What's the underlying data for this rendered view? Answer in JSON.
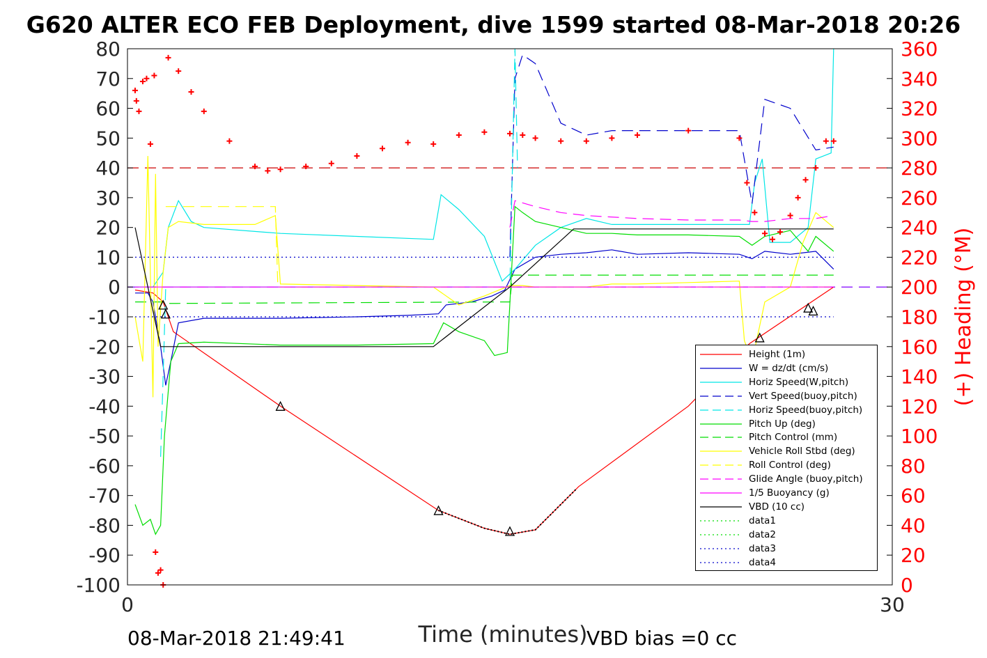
{
  "title": "G620 ALTER ECO FEB Deployment, dive 1599 started 08-Mar-2018 20:26",
  "footer": {
    "timestamp": "08-Mar-2018 21:49:41",
    "vbd_bias": "VBD bias =0 cc"
  },
  "chart_data": {
    "type": "line",
    "title": "G620 ALTER ECO FEB Deployment, dive 1599 started 08-Mar-2018 20:26",
    "xlabel": "Time (minutes)",
    "ylabel": "",
    "y2label": "(+) Heading (°M)",
    "xlim": [
      0,
      30
    ],
    "ylim": [
      -100,
      80
    ],
    "y2lim": [
      0,
      360
    ],
    "xticks": [
      0,
      30
    ],
    "yticks": [
      80,
      70,
      60,
      50,
      40,
      30,
      20,
      10,
      0,
      -10,
      -20,
      -30,
      -40,
      -50,
      -60,
      -70,
      -80,
      -90,
      -100
    ],
    "y2ticks": [
      360,
      340,
      320,
      300,
      280,
      260,
      240,
      220,
      200,
      180,
      160,
      140,
      120,
      100,
      80,
      60,
      40,
      20,
      0
    ],
    "grid": false,
    "legend_position": "bottom-right",
    "colors": {
      "red": "#ff0000",
      "blue": "#0000cc",
      "cyan": "#00e6e6",
      "green": "#00dd00",
      "yellow": "#ffff00",
      "magenta": "#ff00ff",
      "black": "#000000",
      "dark_red": "#cc0000",
      "purple": "#8000ff"
    },
    "series": [
      {
        "name": "Height (1m)",
        "color": "#ff0000",
        "style": "solid",
        "x": [
          0.3,
          1.0,
          1.4,
          1.8,
          6.0,
          12.2,
          14.0,
          15.0,
          16.0,
          17.7,
          22.0,
          24.4,
          27.7
        ],
        "y": [
          -1,
          -2,
          -5,
          -15,
          -40,
          -75,
          -81,
          -83,
          -81.5,
          -67,
          -40,
          -19,
          0
        ]
      },
      {
        "name": "W = dz/dt (cm/s)",
        "color": "#0000cc",
        "style": "solid",
        "x": [
          0.3,
          0.8,
          1.0,
          1.3,
          1.5,
          1.7,
          2.0,
          3.0,
          6.0,
          9.0,
          11.0,
          12.2,
          12.5,
          13.5,
          14.3,
          14.8,
          15.2,
          16.0,
          17.0,
          18.0,
          19.0,
          20.0,
          22.0,
          24.0,
          24.5,
          25.0,
          26.0,
          27.0,
          27.7
        ],
        "y": [
          -2,
          -2,
          -5,
          -20,
          -33,
          -25,
          -12,
          -10.5,
          -10.5,
          -10,
          -9.5,
          -9,
          -6,
          -5,
          -3,
          -1,
          6,
          10,
          11,
          11.5,
          12.5,
          11,
          11.5,
          11,
          9.5,
          12,
          11,
          12,
          6
        ]
      },
      {
        "name": "Horiz Speed(W,pitch)",
        "color": "#00e6e6",
        "style": "solid",
        "x": [
          0.3,
          1.0,
          1.4,
          1.6,
          2.0,
          2.5,
          3.0,
          6.0,
          9.0,
          12.0,
          12.3,
          13.0,
          14.0,
          14.7,
          15.2,
          16.0,
          17.0,
          18.0,
          19.0,
          20.0,
          22.0,
          24.4,
          24.6,
          24.9,
          25.2,
          26.0,
          26.7,
          27.0,
          27.6,
          27.7
        ],
        "y": [
          0,
          0,
          5,
          20,
          29,
          22,
          20,
          18,
          17,
          16,
          31,
          26,
          17,
          2,
          6,
          14,
          20,
          23,
          21,
          21,
          21,
          21,
          35,
          43,
          15,
          15,
          20,
          43,
          45,
          80
        ]
      },
      {
        "name": "Vert Speed(buoy,pitch)",
        "color": "#0000cc",
        "style": "dashed",
        "x": [
          15.0,
          15.2,
          15.5,
          16.0,
          17.0,
          18.0,
          19.0,
          20.0,
          22.0,
          24.0,
          24.5,
          25.0,
          26.0,
          27.0,
          27.7
        ],
        "y": [
          10,
          70,
          78,
          75,
          55,
          51,
          52.5,
          52.5,
          52.5,
          52.5,
          28,
          63,
          60,
          46,
          47
        ]
      },
      {
        "name": "Horiz Speed(buoy,pitch)",
        "color": "#00e6e6",
        "style": "dashed",
        "x": [
          1.3,
          1.4,
          1.5,
          15.0,
          15.2,
          15.3
        ],
        "y": [
          -57,
          -30,
          0,
          0,
          80,
          40
        ]
      },
      {
        "name": "Pitch Up (deg)",
        "color": "#00dd00",
        "style": "solid",
        "x": [
          0.3,
          0.6,
          0.9,
          1.1,
          1.3,
          1.45,
          1.7,
          2.0,
          3.0,
          6.0,
          9.0,
          12.0,
          12.4,
          13.0,
          14.0,
          14.4,
          14.9,
          15.2,
          15.5,
          16.0,
          17.0,
          17.5,
          18.0,
          19.0,
          20.0,
          22.0,
          24.0,
          24.5,
          25.0,
          26.0,
          26.7,
          27.0,
          27.7
        ],
        "y": [
          -73,
          -80,
          -78,
          -83,
          -80,
          -50,
          -25,
          -19,
          -18.5,
          -19.5,
          -19.5,
          -19,
          -12,
          -15,
          -18,
          -23,
          -22,
          27,
          25,
          22,
          20,
          19,
          18,
          18,
          17.5,
          17.5,
          17,
          14,
          17,
          19,
          12,
          17,
          12
        ]
      },
      {
        "name": "Pitch Control (mm)",
        "color": "#00dd00",
        "style": "dashed",
        "x": [
          0.3,
          1.4,
          1.45,
          15.0,
          15.1,
          27.7
        ],
        "y": [
          -5,
          -5,
          -5.5,
          -5,
          4,
          4
        ]
      },
      {
        "name": "Vehicle Roll Stbd (deg)",
        "color": "#ffff00",
        "style": "solid",
        "x": [
          0.3,
          0.6,
          0.8,
          1.0,
          1.1,
          1.2,
          1.4,
          1.6,
          2.0,
          3.0,
          5.0,
          5.8,
          6.0,
          9.0,
          12.0,
          13.0,
          14.0,
          15.0,
          15.5,
          16.0,
          17.0,
          18.0,
          19.0,
          20.0,
          22.0,
          24.0,
          24.2,
          24.5,
          25.0,
          26.0,
          26.5,
          27.0,
          27.7
        ],
        "y": [
          -10,
          -25,
          44,
          -37,
          38,
          -20,
          5,
          20,
          22,
          21,
          21,
          24,
          1,
          0.5,
          0,
          -6,
          -3,
          0.5,
          0.5,
          0,
          0,
          0,
          1,
          1,
          1.5,
          2,
          -18,
          -25,
          -5,
          0,
          15,
          25,
          20
        ]
      },
      {
        "name": "Roll Control (deg)",
        "color": "#ffff00",
        "style": "dashed",
        "x": [
          1.5,
          5.8,
          5.9,
          27.7
        ],
        "y": [
          27,
          27,
          0,
          0
        ]
      },
      {
        "name": "Glide Angle (buoy,pitch)",
        "color": "#ff00ff",
        "style": "dashed",
        "x": [
          15.0,
          15.2,
          16.0,
          17.0,
          18.0,
          20.0,
          22.0,
          24.0,
          24.5,
          25.0,
          26.0,
          26.5,
          27.0,
          27.7
        ],
        "y": [
          20,
          29,
          27,
          25,
          24,
          23,
          22.5,
          22.5,
          22,
          22,
          23,
          23,
          23,
          24
        ]
      },
      {
        "name": "1/5 Buoyancy (g)",
        "color": "#ff00ff",
        "style": "solid",
        "x": [
          0.3,
          27.7
        ],
        "y": [
          0,
          0
        ]
      },
      {
        "name": "VBD (10 cc)",
        "color": "#000000",
        "style": "solid",
        "x": [
          0.3,
          1.3,
          12.0,
          15.0,
          17.5,
          27.7
        ],
        "y": [
          20,
          -20,
          -20,
          0,
          19.5,
          19.5
        ]
      },
      {
        "name": "data1",
        "color": "#00dd00",
        "style": "dotted",
        "x": [],
        "y": []
      },
      {
        "name": "data2",
        "color": "#00dd00",
        "style": "dotted",
        "x": [],
        "y": []
      },
      {
        "name": "data3",
        "color": "#0000cc",
        "style": "dotted",
        "x": [
          0.3,
          27.7
        ],
        "y": [
          10,
          10
        ]
      },
      {
        "name": "data4",
        "color": "#0000cc",
        "style": "dotted",
        "x": [
          0.3,
          27.7
        ],
        "y": [
          -10,
          -10
        ]
      }
    ],
    "reference_lines": [
      {
        "axis": "y2",
        "value": 280,
        "color": "#cc0000",
        "style": "dashed"
      },
      {
        "axis": "y",
        "value": 0,
        "color": "#8000ff",
        "style": "dashed"
      }
    ],
    "heading_points_y2": {
      "x": [
        0.3,
        0.35,
        0.45,
        0.6,
        0.75,
        0.9,
        1.05,
        1.1,
        1.2,
        1.3,
        1.4,
        1.6,
        2.0,
        2.5,
        3.0,
        4.0,
        5.0,
        5.5,
        6.0,
        7.0,
        8.0,
        9.0,
        10.0,
        11.0,
        12.0,
        13.0,
        14.0,
        15.0,
        15.5,
        16.0,
        17.0,
        18.0,
        19.0,
        20.0,
        22.0,
        24.0,
        24.3,
        24.6,
        25.0,
        25.3,
        25.6,
        26.0,
        26.3,
        26.6,
        27.0,
        27.4,
        27.7
      ],
      "y": [
        332,
        325,
        318,
        338,
        340,
        296,
        342,
        22,
        8,
        10,
        0,
        354,
        345,
        331,
        318,
        298,
        281,
        278,
        279,
        281,
        283,
        288,
        293,
        297,
        296,
        302,
        304,
        303,
        302,
        300,
        298,
        298,
        300,
        302,
        305,
        300,
        270,
        250,
        236,
        232,
        237,
        248,
        260,
        272,
        280,
        298,
        298
      ]
    },
    "triangle_markers": {
      "x": [
        1.4,
        1.5,
        6.0,
        12.2,
        15.0,
        26.7,
        24.8,
        26.9
      ],
      "y": [
        -6,
        -9,
        -40,
        -75,
        -82,
        -7,
        -17,
        -8
      ]
    }
  },
  "legend": [
    {
      "label": "Height (1m)",
      "color": "#ff0000",
      "style": "solid"
    },
    {
      "label": "W = dz/dt (cm/s)",
      "color": "#0000cc",
      "style": "solid"
    },
    {
      "label": "Horiz Speed(W,pitch)",
      "color": "#00e6e6",
      "style": "solid"
    },
    {
      "label": "Vert Speed(buoy,pitch)",
      "color": "#0000cc",
      "style": "dashed"
    },
    {
      "label": "Horiz Speed(buoy,pitch)",
      "color": "#00e6e6",
      "style": "dashed"
    },
    {
      "label": "Pitch Up (deg)",
      "color": "#00dd00",
      "style": "solid"
    },
    {
      "label": "Pitch Control (mm)",
      "color": "#00dd00",
      "style": "dashed"
    },
    {
      "label": "Vehicle Roll Stbd (deg)",
      "color": "#ffff00",
      "style": "solid"
    },
    {
      "label": "Roll Control (deg)",
      "color": "#ffff00",
      "style": "dashed"
    },
    {
      "label": "Glide Angle (buoy,pitch)",
      "color": "#ff00ff",
      "style": "dashed"
    },
    {
      "label": "1/5 Buoyancy (g)",
      "color": "#ff00ff",
      "style": "solid"
    },
    {
      "label": "VBD (10 cc)",
      "color": "#000000",
      "style": "solid"
    },
    {
      "label": "data1",
      "color": "#00dd00",
      "style": "dotted"
    },
    {
      "label": "data2",
      "color": "#00dd00",
      "style": "dotted"
    },
    {
      "label": "data3",
      "color": "#0000cc",
      "style": "dotted"
    },
    {
      "label": "data4",
      "color": "#0000cc",
      "style": "dotted"
    }
  ]
}
